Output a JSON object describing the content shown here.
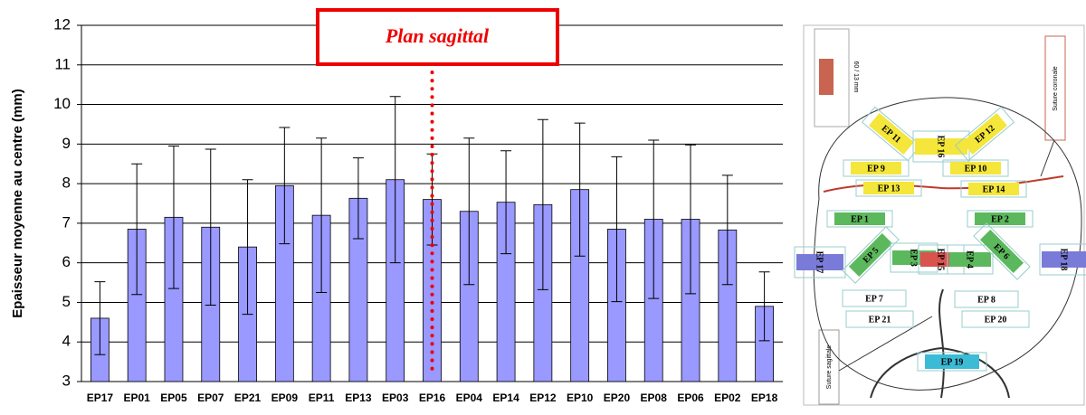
{
  "chart_data": {
    "type": "bar",
    "y_label": "Epaisseur moyenne au centre (mm)",
    "annotation": "Plan sagittal",
    "annotation_category": "EP16",
    "categories": [
      "EP17",
      "EP01",
      "EP05",
      "EP07",
      "EP21",
      "EP09",
      "EP11",
      "EP13",
      "EP03",
      "EP16",
      "EP04",
      "EP14",
      "EP12",
      "EP10",
      "EP20",
      "EP08",
      "EP06",
      "EP02",
      "EP18"
    ],
    "series": [
      {
        "color": "#9999ff",
        "values": [
          4.6,
          6.85,
          7.15,
          6.9,
          6.4,
          7.95,
          7.2,
          7.63,
          8.1,
          7.6,
          7.3,
          7.53,
          7.47,
          7.85,
          6.85,
          7.1,
          7.1,
          6.83,
          4.9
        ],
        "errors": [
          0.92,
          1.65,
          1.8,
          1.97,
          1.7,
          1.47,
          1.95,
          1.02,
          2.1,
          1.15,
          1.85,
          1.3,
          2.15,
          1.68,
          1.83,
          2.0,
          1.88,
          1.38,
          0.87
        ]
      }
    ],
    "ylim": [
      3,
      12
    ],
    "yticks": [
      3,
      4,
      5,
      6,
      7,
      8,
      9,
      10,
      11,
      12
    ],
    "grid": true
  },
  "diagram": {
    "labels": [
      "EP 11",
      "EP 16",
      "EP 12",
      "EP 9",
      "EP 10",
      "EP 13",
      "EP 14",
      "EP 1",
      "EP 2",
      "EP 17",
      "EP 5",
      "EP 3",
      "EP 15",
      "EP 4",
      "EP 6",
      "EP 18",
      "EP 7",
      "EP 8",
      "EP 21",
      "EP 20",
      "EP 19"
    ],
    "notes": [
      "60 / 13 mm",
      "Suture coronale",
      "Suture sagittale"
    ]
  }
}
